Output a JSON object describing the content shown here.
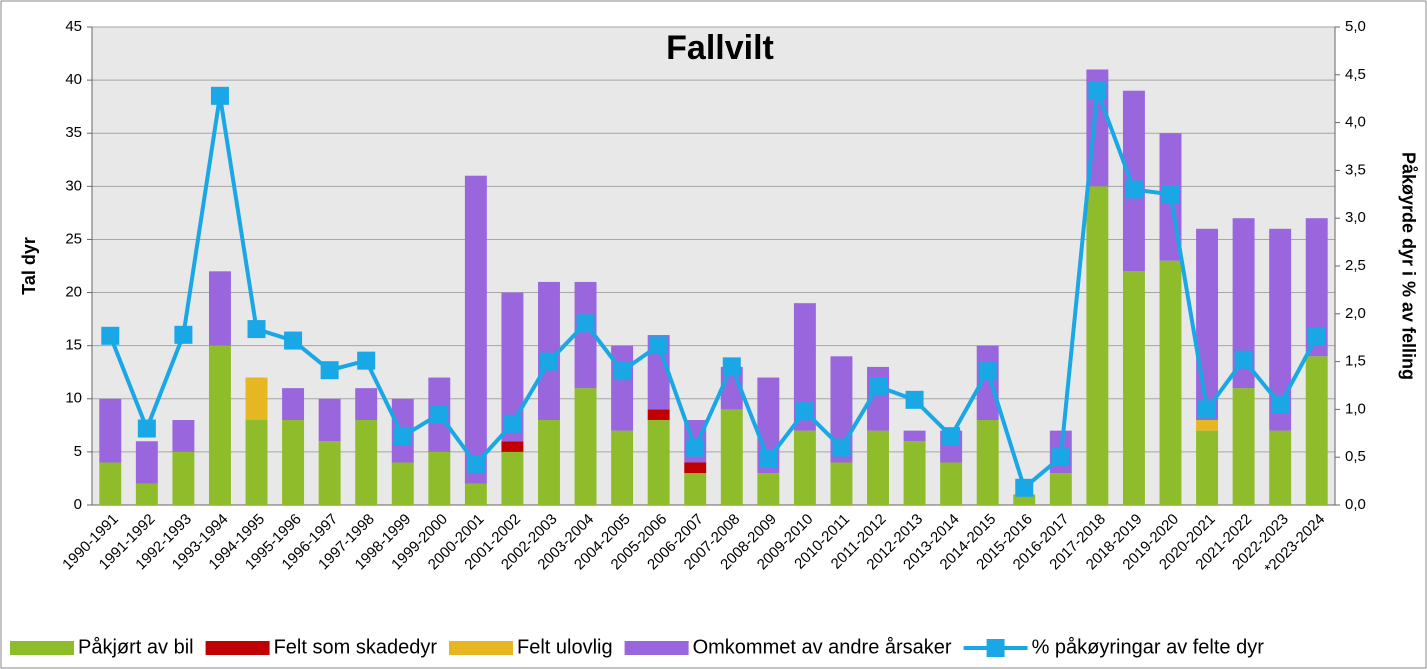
{
  "chart_data": {
    "type": "bar",
    "stacked": true,
    "title": "Fallvilt",
    "ylabel": "Tal dyr",
    "y2label": "Påkøyrde dyr i  %  av felling",
    "categories": [
      "1990-1991",
      "1991-1992",
      "1992-1993",
      "1993-1994",
      "1994-1995",
      "1995-1996",
      "1996-1997",
      "1997-1998",
      "1998-1999",
      "1999-2000",
      "2000-2001",
      "2001-2002",
      "2002-2003",
      "2003-2004",
      "2004-2005",
      "2005-2006",
      "2006-2007",
      "2007-2008",
      "2008-2009",
      "2009-2010",
      "2010-2011",
      "2011-2012",
      "2012-2013",
      "2013-2014",
      "2014-2015",
      "2015-2016",
      "2016-2017",
      "2017-2018",
      "2018-2019",
      "2019-2020",
      "2020-2021",
      "2021-2022",
      "2022-2023",
      "*2023-2024"
    ],
    "series": [
      {
        "name": "Påkjørt av bil",
        "color": "#8fbc2b",
        "values": [
          4,
          2,
          5,
          15,
          8,
          8,
          6,
          8,
          4,
          5,
          2,
          5,
          8,
          11,
          7,
          8,
          3,
          9,
          3,
          7,
          4,
          7,
          6,
          4,
          8,
          1,
          3,
          30,
          22,
          23,
          7,
          11,
          7,
          14
        ]
      },
      {
        "name": "Felt som skadedyr",
        "color": "#c00000",
        "values": [
          0,
          0,
          0,
          0,
          0,
          0,
          0,
          0,
          0,
          0,
          0,
          1,
          0,
          0,
          0,
          1,
          1,
          0,
          0,
          0,
          0,
          0,
          0,
          0,
          0,
          0,
          0,
          0,
          0,
          0,
          0,
          0,
          0,
          0
        ]
      },
      {
        "name": "Felt ulovlig",
        "color": "#e6b623",
        "values": [
          0,
          0,
          0,
          0,
          4,
          0,
          0,
          0,
          0,
          0,
          0,
          0,
          0,
          0,
          0,
          0,
          0,
          0,
          0,
          0,
          0,
          0,
          0,
          0,
          0,
          0,
          0,
          0,
          0,
          0,
          1,
          0,
          0,
          0
        ]
      },
      {
        "name": "Omkommet av andre årsaker",
        "color": "#9966dd",
        "values": [
          6,
          4,
          3,
          7,
          0,
          3,
          4,
          3,
          6,
          7,
          29,
          14,
          13,
          10,
          8,
          7,
          4,
          4,
          9,
          12,
          10,
          6,
          1,
          3,
          7,
          0,
          4,
          11,
          17,
          12,
          18,
          16,
          19,
          13
        ]
      },
      {
        "name": "% påkøyringar av felte dyr",
        "color": "#1aa7e6",
        "type": "line",
        "axis": "y2",
        "values": [
          1.77,
          0.8,
          1.78,
          4.28,
          1.84,
          1.72,
          1.41,
          1.51,
          0.72,
          0.95,
          0.43,
          0.85,
          1.5,
          1.9,
          1.4,
          1.67,
          0.6,
          1.45,
          0.48,
          0.98,
          0.6,
          1.24,
          1.1,
          0.72,
          1.4,
          0.18,
          0.5,
          4.33,
          3.3,
          3.25,
          1.0,
          1.52,
          1.05,
          1.76
        ]
      }
    ],
    "ylim": [
      0,
      45
    ],
    "yticks": [
      0,
      5,
      10,
      15,
      20,
      25,
      30,
      35,
      40,
      45
    ],
    "y2lim": [
      0,
      5
    ],
    "y2ticks": [
      {
        "value": 0,
        "label": "0,0"
      },
      {
        "value": 0.5,
        "label": "0,5"
      },
      {
        "value": 1,
        "label": "1,0"
      },
      {
        "value": 1.5,
        "label": "1,5"
      },
      {
        "value": 2,
        "label": "2,0"
      },
      {
        "value": 2.5,
        "label": "2,5"
      },
      {
        "value": 3,
        "label": "3,0"
      },
      {
        "value": 3.5,
        "label": "3,5"
      },
      {
        "value": 4,
        "label": "4,0"
      },
      {
        "value": 4.5,
        "label": "4,5"
      },
      {
        "value": 5,
        "label": "5,0"
      }
    ],
    "grid": true,
    "legend": "bottom"
  }
}
